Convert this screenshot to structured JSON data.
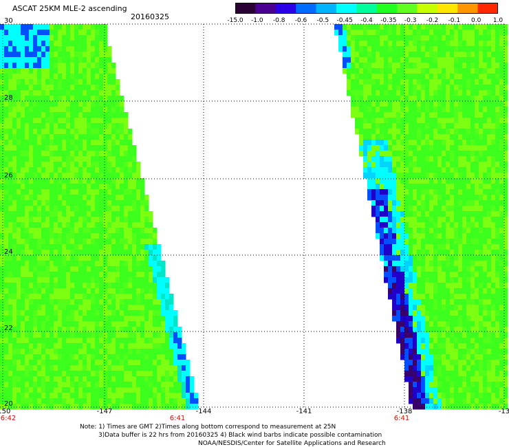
{
  "header": {
    "title": "ASCAT 25KM MLE-2 ascending",
    "date": "20160325"
  },
  "colorbar": {
    "labels": [
      "-15.0",
      "-1.0",
      "-0.8",
      "-0.6",
      "-0.5",
      "-0.45",
      "-0.4",
      "-0.35",
      "-0.3",
      "-0.2",
      "-0.1",
      "0.0",
      "1.0"
    ],
    "colors": [
      "#2a0035",
      "#4a0090",
      "#2c00e6",
      "#006cff",
      "#00b4ff",
      "#00ffff",
      "#00ff9c",
      "#20ff20",
      "#60ff20",
      "#c8ff00",
      "#ffe600",
      "#ff9600",
      "#ff2800"
    ]
  },
  "map": {
    "lat_labels": [
      "30",
      "28",
      "26",
      "24",
      "22",
      "20"
    ],
    "lon_labels": [
      "-150",
      "-147",
      "-144",
      "-141",
      "-138",
      "-13"
    ],
    "time_labels": [
      "6:42",
      "6:41",
      "6:41"
    ],
    "colors": {
      "green": "#3cff1e",
      "light_green": "#7cff10",
      "cyan": "#00ffff",
      "blue": "#0050ff",
      "navy": "#2000c8",
      "dark_purple": "#3a006a",
      "time_label": "#c81400"
    }
  },
  "notes": [
    "Note: 1) Times are GMT 2)Times along bottom correspond to measurement at 25N",
    "3)Data buffer is 22 hrs from 20160325 4) Black wind barbs indicate possible contamination",
    "NOAA/NESDIS/Center for Satellite Applications and Research"
  ]
}
